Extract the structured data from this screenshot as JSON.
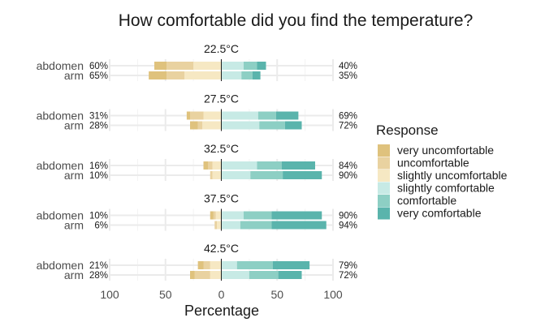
{
  "chart_data": {
    "type": "bar",
    "subtype": "diverging-stacked",
    "title": "How comfortable did you find the temperature?",
    "xlabel": "Percentage",
    "ylabel": "",
    "xlim": [
      -100,
      100
    ],
    "x_ticks": [
      -100,
      -50,
      0,
      50,
      100
    ],
    "x_tick_labels": [
      "100",
      "50",
      "0",
      "50",
      "100"
    ],
    "grid": true,
    "legend": {
      "title": "Response",
      "position": "right",
      "entries": [
        {
          "label": "very uncomfortable",
          "color": "#DFC27D"
        },
        {
          "label": "uncomfortable",
          "color": "#E9D2A0"
        },
        {
          "label": "slightly uncomfortable",
          "color": "#F6E8C3"
        },
        {
          "label": "slightly comfortable",
          "color": "#C7EAE5"
        },
        {
          "label": "comfortable",
          "color": "#8DCFC4"
        },
        {
          "label": "very comfortable",
          "color": "#5AB4AC"
        }
      ]
    },
    "panels": [
      {
        "title": "22.5°C",
        "rows": [
          {
            "label": "abdomen",
            "left_pct": "60%",
            "right_pct": "40%",
            "values": [
              11,
              24,
              25,
              20,
              12,
              8
            ]
          },
          {
            "label": "arm",
            "left_pct": "65%",
            "right_pct": "35%",
            "values": [
              16,
              16,
              33,
              18,
              10,
              7
            ]
          }
        ]
      },
      {
        "title": "27.5°C",
        "rows": [
          {
            "label": "abdomen",
            "left_pct": "31%",
            "right_pct": "69%",
            "values": [
              3,
              12,
              16,
              33,
              16,
              20
            ]
          },
          {
            "label": "arm",
            "left_pct": "28%",
            "right_pct": "72%",
            "values": [
              7,
              4,
              17,
              34,
              23,
              15
            ]
          }
        ]
      },
      {
        "title": "32.5°C",
        "rows": [
          {
            "label": "abdomen",
            "left_pct": "16%",
            "right_pct": "84%",
            "values": [
              4,
              4,
              8,
              32,
              22,
              30
            ]
          },
          {
            "label": "arm",
            "left_pct": "10%",
            "right_pct": "90%",
            "values": [
              0,
              2,
              8,
              26,
              29,
              35
            ]
          }
        ]
      },
      {
        "title": "37.5°C",
        "rows": [
          {
            "label": "abdomen",
            "left_pct": "10%",
            "right_pct": "90%",
            "values": [
              3,
              2,
              5,
              20,
              25,
              45
            ]
          },
          {
            "label": "arm",
            "left_pct": "6%",
            "right_pct": "94%",
            "values": [
              0,
              2,
              4,
              17,
              28,
              49
            ]
          }
        ]
      },
      {
        "title": "42.5°C",
        "rows": [
          {
            "label": "abdomen",
            "left_pct": "21%",
            "right_pct": "79%",
            "values": [
              5,
              6,
              10,
              14,
              32,
              33
            ]
          },
          {
            "label": "arm",
            "left_pct": "28%",
            "right_pct": "72%",
            "values": [
              4,
              14,
              10,
              25,
              26,
              21
            ]
          }
        ]
      }
    ]
  }
}
